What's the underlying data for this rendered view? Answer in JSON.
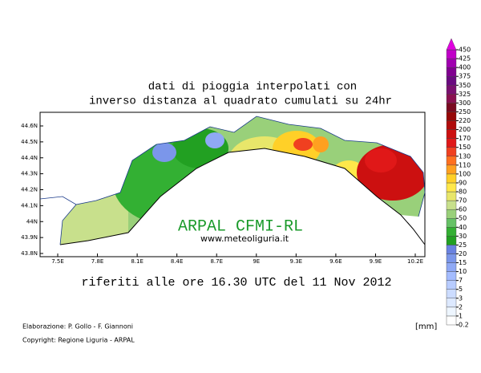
{
  "header": {
    "title_line1": "dati di pioggia interpolati con",
    "title_line2": "inverso distanza al quadrato cumulati su 24hr"
  },
  "map": {
    "lon_labels": [
      "7.5E",
      "7.8E",
      "8.1E",
      "8.4E",
      "8.7E",
      "9E",
      "9.3E",
      "9.6E",
      "9.9E",
      "10.2E"
    ],
    "lat_labels": [
      "44.6N",
      "44.5N",
      "44.4N",
      "44.3N",
      "44.2N",
      "44.1N",
      "44N",
      "43.9N",
      "43.8N"
    ],
    "watermark": "ARPAL CFMI-RL",
    "website": "www.meteoliguria.it"
  },
  "subtitle": "riferiti alle ore 16.30 UTC del 11 Nov 2012",
  "footer": {
    "credits": "Elaborazione: P. Gollo - F. Giannoni",
    "copyright": "Copyright: Regione Liguria - ARPAL"
  },
  "colorbar": {
    "unit": "[mm]",
    "levels": [
      0.2,
      1,
      2,
      3,
      5,
      7,
      10,
      15,
      20,
      25,
      30,
      40,
      50,
      60,
      70,
      80,
      90,
      100,
      110,
      130,
      150,
      170,
      200,
      220,
      250,
      300,
      325,
      350,
      375,
      400,
      425,
      450
    ],
    "colors": [
      "#ffffff",
      "#eef6ff",
      "#dde9ff",
      "#ccdcff",
      "#b8ccff",
      "#a4bcff",
      "#8fa9f5",
      "#7b96ea",
      "#6a82e0",
      "#22a022",
      "#33b033",
      "#66c266",
      "#99d07a",
      "#c8e08c",
      "#e8e66a",
      "#ffe84a",
      "#ffd028",
      "#ffa020",
      "#ff7020",
      "#f04020",
      "#e01818",
      "#cc1010",
      "#b00c0c",
      "#960808",
      "#7a0a20",
      "#8a1050",
      "#7a1070",
      "#6a0a80",
      "#800090",
      "#a000b0",
      "#c000c8",
      "#e000e0"
    ]
  }
}
